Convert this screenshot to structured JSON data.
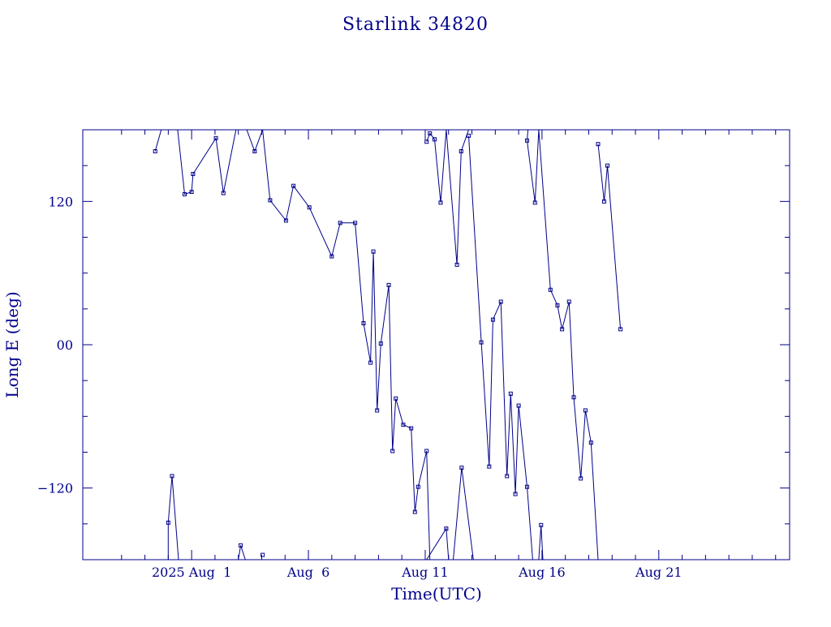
{
  "chart_data": {
    "type": "line",
    "title": "Starlink 34820",
    "xlabel": "Time(UTC)",
    "ylabel": "Long E (deg)",
    "color": "#00008b",
    "x_axis": {
      "unit": "days since 2025 Jul 27 00:00 UTC",
      "range": [
        -4.66,
        25.6
      ],
      "tick_labels": [
        {
          "x": 0,
          "label": "2025 Aug  1"
        },
        {
          "x": 5,
          "label": "Aug  6"
        },
        {
          "x": 10,
          "label": "Aug 11"
        },
        {
          "x": 15,
          "label": "Aug 16"
        },
        {
          "x": 20,
          "label": "Aug 21"
        }
      ],
      "minor_ticks": [
        -3,
        -2,
        -1,
        1,
        2,
        3,
        4,
        6,
        7,
        8,
        9,
        11,
        12,
        13,
        14,
        16,
        17,
        18,
        19,
        21,
        22,
        23,
        24,
        25
      ]
    },
    "y_axis": {
      "range": [
        -180,
        180
      ],
      "tick_labels": [
        {
          "y": 120,
          "label": "120"
        },
        {
          "y": 0,
          "label": "00"
        },
        {
          "y": -120,
          "label": "−120"
        }
      ],
      "minor_ticks": [
        -150,
        -90,
        -60,
        -30,
        30,
        60,
        90,
        150
      ]
    },
    "series": [
      {
        "values": [
          [
            -1.56,
            162
          ],
          [
            -1.3,
            180
          ]
        ]
      },
      {
        "values": [
          [
            -0.6,
            180
          ],
          [
            -0.3,
            126
          ],
          [
            0.0,
            128
          ],
          [
            0.06,
            143
          ],
          [
            1.04,
            173
          ],
          [
            1.36,
            127
          ],
          [
            1.9,
            180
          ]
        ]
      },
      {
        "values": [
          [
            2.36,
            180
          ],
          [
            2.7,
            162
          ],
          [
            3.04,
            180
          ]
        ]
      },
      {
        "values": [
          [
            3.04,
            180
          ],
          [
            3.36,
            121
          ],
          [
            4.04,
            104
          ],
          [
            4.36,
            133
          ],
          [
            5.04,
            115
          ],
          [
            6.0,
            74
          ],
          [
            6.36,
            102
          ],
          [
            7.0,
            102
          ],
          [
            7.36,
            18
          ],
          [
            7.66,
            -15
          ],
          [
            7.78,
            78
          ],
          [
            7.94,
            -55
          ],
          [
            8.1,
            1
          ],
          [
            8.44,
            50
          ],
          [
            8.6,
            -89
          ],
          [
            8.74,
            -45
          ],
          [
            9.06,
            -67
          ],
          [
            9.4,
            -70
          ],
          [
            9.56,
            -140
          ],
          [
            9.7,
            -119
          ],
          [
            10.06,
            -89
          ],
          [
            10.2,
            -180
          ]
        ]
      },
      {
        "values": [
          [
            -1.0,
            -180
          ],
          [
            -1.0,
            -149
          ],
          [
            -0.84,
            -110
          ],
          [
            -0.56,
            -180
          ]
        ]
      },
      {
        "values": [
          [
            2.0,
            -180
          ],
          [
            2.1,
            -168
          ],
          [
            2.3,
            -180
          ]
        ]
      },
      {
        "values": [
          [
            3.04,
            -176
          ]
        ]
      },
      {
        "values": [
          [
            10.06,
            -180
          ],
          [
            10.9,
            -154
          ],
          [
            11.0,
            -180
          ]
        ]
      },
      {
        "values": [
          [
            12.06,
            -180
          ],
          [
            11.56,
            -103
          ],
          [
            11.2,
            -180
          ]
        ]
      },
      {
        "values": [
          [
            10.06,
            170
          ],
          [
            10.2,
            177
          ],
          [
            10.4,
            172
          ],
          [
            10.66,
            119
          ],
          [
            10.9,
            180
          ]
        ]
      },
      {
        "values": [
          [
            10.9,
            180
          ],
          [
            11.36,
            67
          ],
          [
            11.54,
            162
          ],
          [
            11.86,
            180
          ]
        ]
      },
      {
        "values": [
          [
            11.86,
            175
          ],
          [
            12.4,
            2
          ],
          [
            12.74,
            -102
          ],
          [
            12.9,
            21
          ],
          [
            13.24,
            36
          ],
          [
            13.5,
            -110
          ],
          [
            13.66,
            -41
          ],
          [
            13.86,
            -125
          ],
          [
            14.0,
            -51
          ],
          [
            14.36,
            -119
          ],
          [
            14.6,
            -180
          ]
        ]
      },
      {
        "values": [
          [
            14.86,
            -180
          ],
          [
            14.96,
            -151
          ],
          [
            15.04,
            -180
          ]
        ]
      },
      {
        "values": [
          [
            14.4,
            180
          ],
          [
            14.36,
            171
          ],
          [
            14.7,
            119
          ],
          [
            14.86,
            180
          ]
        ]
      },
      {
        "values": [
          [
            14.86,
            180
          ],
          [
            15.36,
            46
          ],
          [
            15.66,
            33
          ],
          [
            15.86,
            13
          ],
          [
            16.16,
            36
          ],
          [
            16.36,
            -44
          ],
          [
            16.66,
            -112
          ],
          [
            16.86,
            -55
          ],
          [
            17.1,
            -82
          ],
          [
            17.4,
            -180
          ]
        ]
      },
      {
        "values": [
          [
            17.4,
            168
          ],
          [
            17.66,
            120
          ],
          [
            17.8,
            150
          ],
          [
            18.36,
            13
          ]
        ]
      }
    ]
  }
}
